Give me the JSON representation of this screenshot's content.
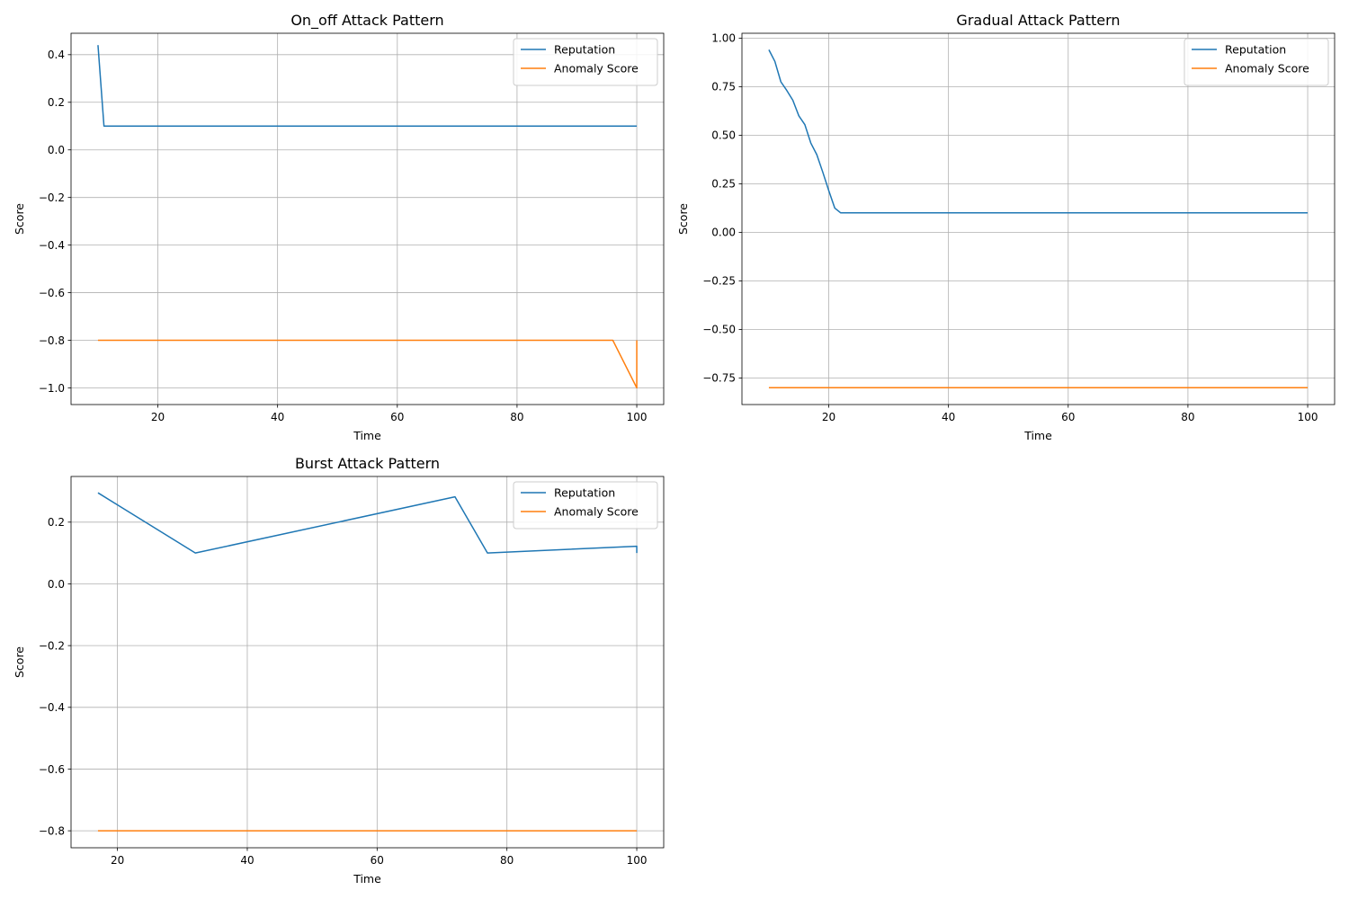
{
  "colors": {
    "reputation": "#1f77b4",
    "anomaly": "#ff7f0e",
    "grid": "#b0b0b0",
    "axis": "#000000"
  },
  "chart_data": [
    {
      "type": "line",
      "title": "On_off Attack Pattern",
      "xlabel": "Time",
      "ylabel": "Score",
      "xlim": [
        5.5,
        104.5
      ],
      "ylim": [
        -1.07,
        0.49
      ],
      "xticks": [
        20,
        40,
        60,
        80,
        100
      ],
      "xtick_labels": [
        "20",
        "40",
        "60",
        "80",
        "100"
      ],
      "yticks": [
        -1.0,
        -0.8,
        -0.6,
        -0.4,
        -0.2,
        0.0,
        0.2,
        0.4
      ],
      "ytick_labels": [
        "−1.0",
        "−0.8",
        "−0.6",
        "−0.4",
        "−0.2",
        "0.0",
        "0.2",
        "0.4"
      ],
      "grid": true,
      "legend": "top-right",
      "series": [
        {
          "name": "Reputation",
          "color_key": "reputation",
          "x": [
            10,
            11,
            100
          ],
          "y": [
            0.44,
            0.1,
            0.1
          ]
        },
        {
          "name": "Anomaly Score",
          "color_key": "anomaly",
          "x": [
            10,
            96,
            100,
            100
          ],
          "y": [
            -0.8,
            -0.8,
            -1.0,
            -0.8
          ]
        }
      ]
    },
    {
      "type": "line",
      "title": "Gradual Attack Pattern",
      "xlabel": "Time",
      "ylabel": "Score",
      "xlim": [
        5.5,
        104.5
      ],
      "ylim": [
        -0.887,
        1.025
      ],
      "xticks": [
        20,
        40,
        60,
        80,
        100
      ],
      "xtick_labels": [
        "20",
        "40",
        "60",
        "80",
        "100"
      ],
      "yticks": [
        -0.75,
        -0.5,
        -0.25,
        0.0,
        0.25,
        0.5,
        0.75,
        1.0
      ],
      "ytick_labels": [
        "−0.75",
        "−0.50",
        "−0.25",
        "0.00",
        "0.25",
        "0.50",
        "0.75",
        "1.00"
      ],
      "grid": true,
      "legend": "top-right",
      "series": [
        {
          "name": "Reputation",
          "color_key": "reputation",
          "x": [
            10,
            11,
            12,
            13,
            14,
            15,
            16,
            17,
            18,
            19,
            20,
            21,
            22,
            100
          ],
          "y": [
            0.94,
            0.88,
            0.775,
            0.73,
            0.68,
            0.6,
            0.555,
            0.46,
            0.4,
            0.31,
            0.215,
            0.125,
            0.1,
            0.1
          ]
        },
        {
          "name": "Anomaly Score",
          "color_key": "anomaly",
          "x": [
            10,
            100
          ],
          "y": [
            -0.8,
            -0.8
          ]
        }
      ]
    },
    {
      "type": "line",
      "title": "Burst Attack Pattern",
      "xlabel": "Time",
      "ylabel": "Score",
      "xlim": [
        12.85,
        104.15
      ],
      "ylim": [
        -0.855,
        0.348
      ],
      "xticks": [
        20,
        40,
        60,
        80,
        100
      ],
      "xtick_labels": [
        "20",
        "40",
        "60",
        "80",
        "100"
      ],
      "yticks": [
        -0.8,
        -0.6,
        -0.4,
        -0.2,
        0.0,
        0.2
      ],
      "ytick_labels": [
        "−0.8",
        "−0.6",
        "−0.4",
        "−0.2",
        "0.0",
        "0.2"
      ],
      "grid": true,
      "legend": "top-right",
      "series": [
        {
          "name": "Reputation",
          "color_key": "reputation",
          "x": [
            17,
            32,
            72,
            77,
            100,
            100
          ],
          "y": [
            0.295,
            0.1,
            0.282,
            0.1,
            0.122,
            0.1
          ]
        },
        {
          "name": "Anomaly Score",
          "color_key": "anomaly",
          "x": [
            17,
            100
          ],
          "y": [
            -0.8,
            -0.8
          ]
        }
      ]
    }
  ]
}
